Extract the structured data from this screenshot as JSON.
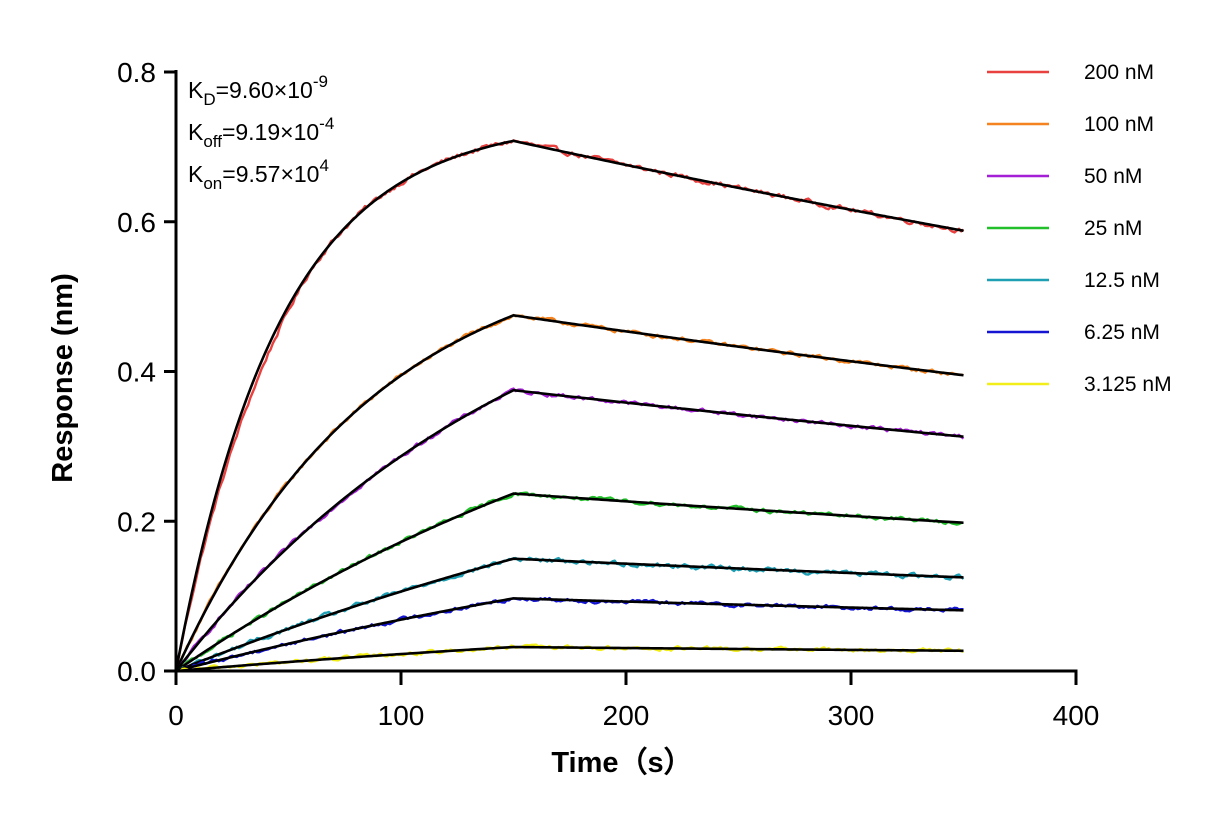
{
  "chart_data": {
    "type": "line",
    "title": "",
    "xlabel": "Time（s）",
    "ylabel": "Response (nm)",
    "xlim": [
      0,
      400
    ],
    "ylim": [
      0,
      0.8
    ],
    "x_ticks": [
      0,
      100,
      200,
      300,
      400
    ],
    "x_tick_labels": [
      "0",
      "100",
      "200",
      "300",
      "400"
    ],
    "y_ticks": [
      0.0,
      0.2,
      0.4,
      0.6,
      0.8
    ],
    "y_tick_labels": [
      "0.0",
      "0.2",
      "0.4",
      "0.6",
      "0.8"
    ],
    "grid": false,
    "legend_position": "right",
    "association_end_s": 150,
    "dissociation_end_s": 350,
    "fit_color": "#000000",
    "annotations": [
      {
        "symbol": "K",
        "subscript": "D",
        "value": "=9.60×10",
        "exponent": "-9"
      },
      {
        "symbol": "K",
        "subscript": "off",
        "value": "=9.19×10",
        "exponent": "-4"
      },
      {
        "symbol": "K",
        "subscript": "on",
        "value": "=9.57×10",
        "exponent": "4"
      }
    ],
    "series": [
      {
        "name": "200 nM",
        "color": "#e8413f",
        "plateau_at_150s": 0.708,
        "end_at_350s": 0.588,
        "noise": 0.006
      },
      {
        "name": "100 nM",
        "color": "#f5831f",
        "plateau_at_150s": 0.475,
        "end_at_350s": 0.395,
        "noise": 0.005
      },
      {
        "name": "50 nM",
        "color": "#a51fd6",
        "plateau_at_150s": 0.375,
        "end_at_350s": 0.313,
        "noise": 0.005
      },
      {
        "name": "25 nM",
        "color": "#22c02a",
        "plateau_at_150s": 0.237,
        "end_at_350s": 0.198,
        "noise": 0.005
      },
      {
        "name": "12.5 nM",
        "color": "#1f9fb4",
        "plateau_at_150s": 0.15,
        "end_at_350s": 0.125,
        "noise": 0.006
      },
      {
        "name": "6.25 nM",
        "color": "#1414d2",
        "plateau_at_150s": 0.097,
        "end_at_350s": 0.081,
        "noise": 0.005
      },
      {
        "name": "3.125 nM",
        "color": "#f2ee1a",
        "plateau_at_150s": 0.032,
        "end_at_350s": 0.027,
        "noise": 0.005
      }
    ]
  }
}
